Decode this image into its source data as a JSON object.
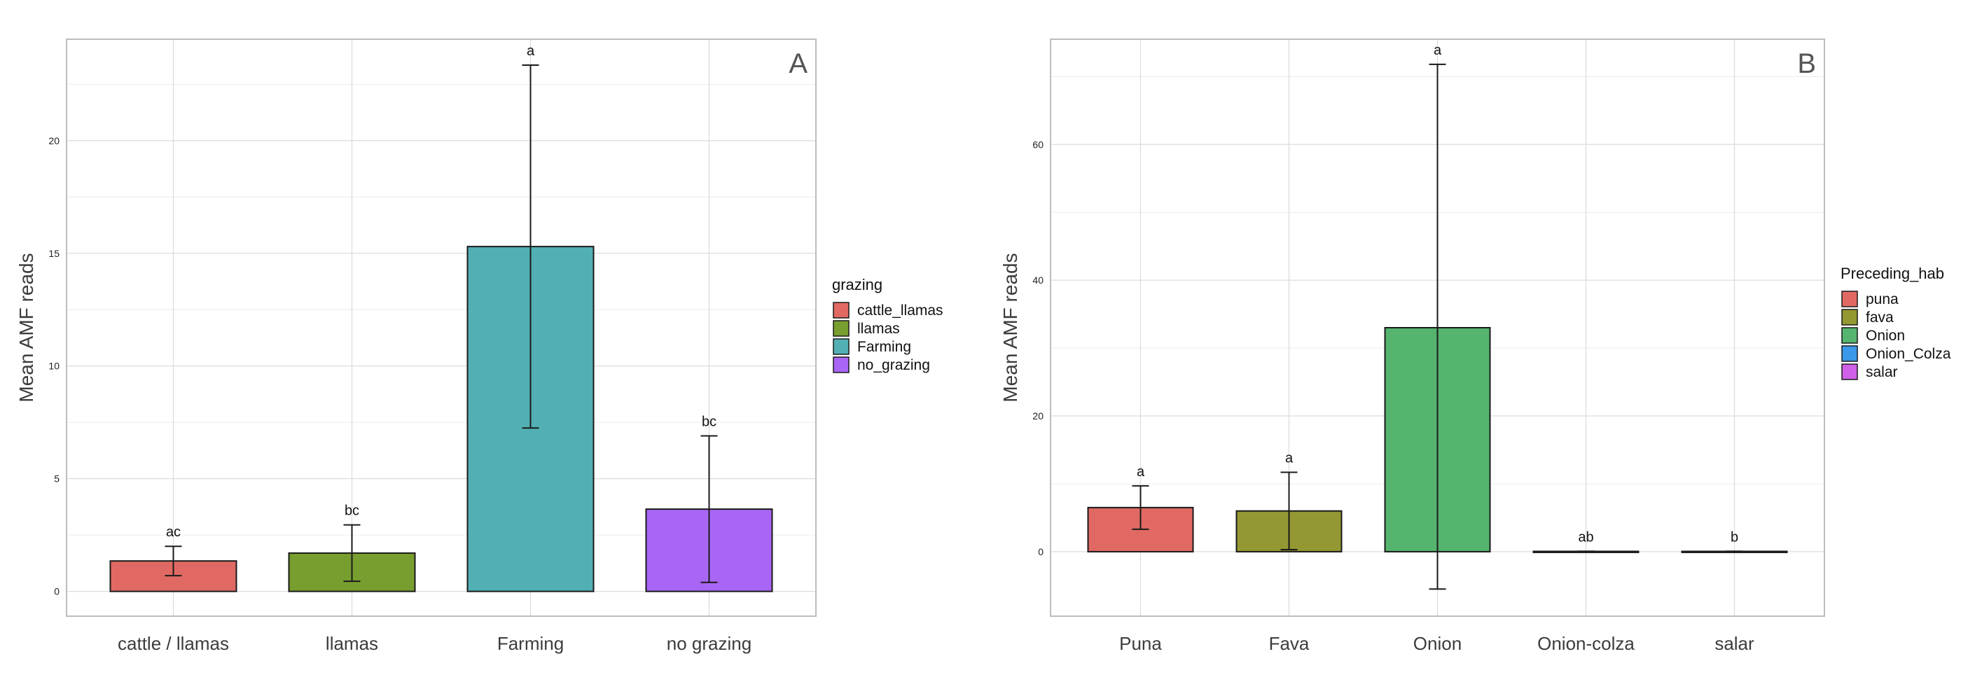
{
  "chart_data": [
    {
      "type": "bar",
      "panel_label": "A",
      "ylabel": "Mean AMF reads",
      "xlabel": "",
      "ylim": [
        -1.1,
        24.5
      ],
      "yticks": [
        0,
        5,
        10,
        15,
        20
      ],
      "categories": [
        "cattle / llamas",
        "llamas",
        "Farming",
        "no grazing"
      ],
      "values": [
        1.35,
        1.7,
        15.3,
        3.65
      ],
      "error_low": [
        0.7,
        0.45,
        7.25,
        0.4
      ],
      "error_high": [
        2.0,
        2.95,
        23.35,
        6.9
      ],
      "significance": [
        "ac",
        "bc",
        "a",
        "bc"
      ],
      "colors": [
        "#E06A63",
        "#789E2F",
        "#52B0B4",
        "#A966F5"
      ],
      "legend": {
        "title": "grazing",
        "items": [
          "cattle_llamas",
          "llamas",
          "Farming",
          "no_grazing"
        ],
        "colors": [
          "#E06A63",
          "#789E2F",
          "#52B0B4",
          "#A966F5"
        ],
        "position": "right"
      },
      "grid": true
    },
    {
      "type": "bar",
      "panel_label": "B",
      "ylabel": "Mean AMF reads",
      "xlabel": "",
      "ylim": [
        -9.5,
        75.5
      ],
      "yticks": [
        0,
        20,
        40,
        60
      ],
      "categories": [
        "Puna",
        "Fava",
        "Onion",
        "Onion-colza",
        "salar"
      ],
      "values": [
        6.5,
        6.0,
        33.0,
        0.05,
        0.05
      ],
      "error_low": [
        3.3,
        0.3,
        -5.5,
        0.05,
        0.05
      ],
      "error_high": [
        9.7,
        11.7,
        71.8,
        0.05,
        0.05
      ],
      "significance": [
        "a",
        "a",
        "a",
        "ab",
        "b"
      ],
      "colors": [
        "#E06A63",
        "#949832",
        "#55B46E",
        "#3C98E8",
        "#D060E8"
      ],
      "legend": {
        "title": "Preceding_hab",
        "items": [
          "puna",
          "fava",
          "Onion",
          "Onion_Colza",
          "salar"
        ],
        "colors": [
          "#E06A63",
          "#949832",
          "#55B46E",
          "#3C98E8",
          "#D060E8"
        ],
        "position": "right"
      },
      "grid": true
    }
  ]
}
